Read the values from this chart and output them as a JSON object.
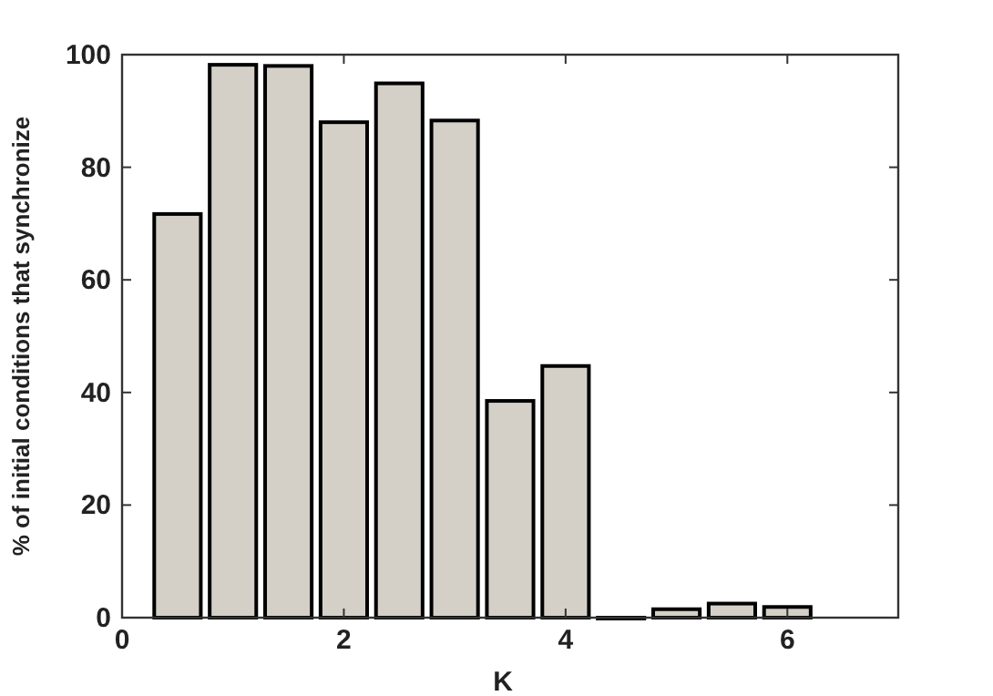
{
  "chart_data": {
    "type": "bar",
    "xlabel": "K",
    "ylabel": "% of initial conditions that synchronize",
    "x": [
      0.5,
      1,
      1.5,
      2,
      2.5,
      3,
      3.5,
      4,
      4.5,
      5,
      5.5,
      6
    ],
    "values": [
      71.7,
      98.2,
      98,
      88,
      94.9,
      88.3,
      38.5,
      44.7,
      0,
      1.5,
      2.5,
      1.9
    ],
    "color": "#d4d0c8",
    "xlim": [
      0,
      7
    ],
    "xticks": [
      0,
      2,
      4,
      6
    ],
    "ylim": [
      0,
      100
    ],
    "yticks": [
      0,
      20,
      40,
      60,
      80,
      100
    ],
    "grid": false
  }
}
